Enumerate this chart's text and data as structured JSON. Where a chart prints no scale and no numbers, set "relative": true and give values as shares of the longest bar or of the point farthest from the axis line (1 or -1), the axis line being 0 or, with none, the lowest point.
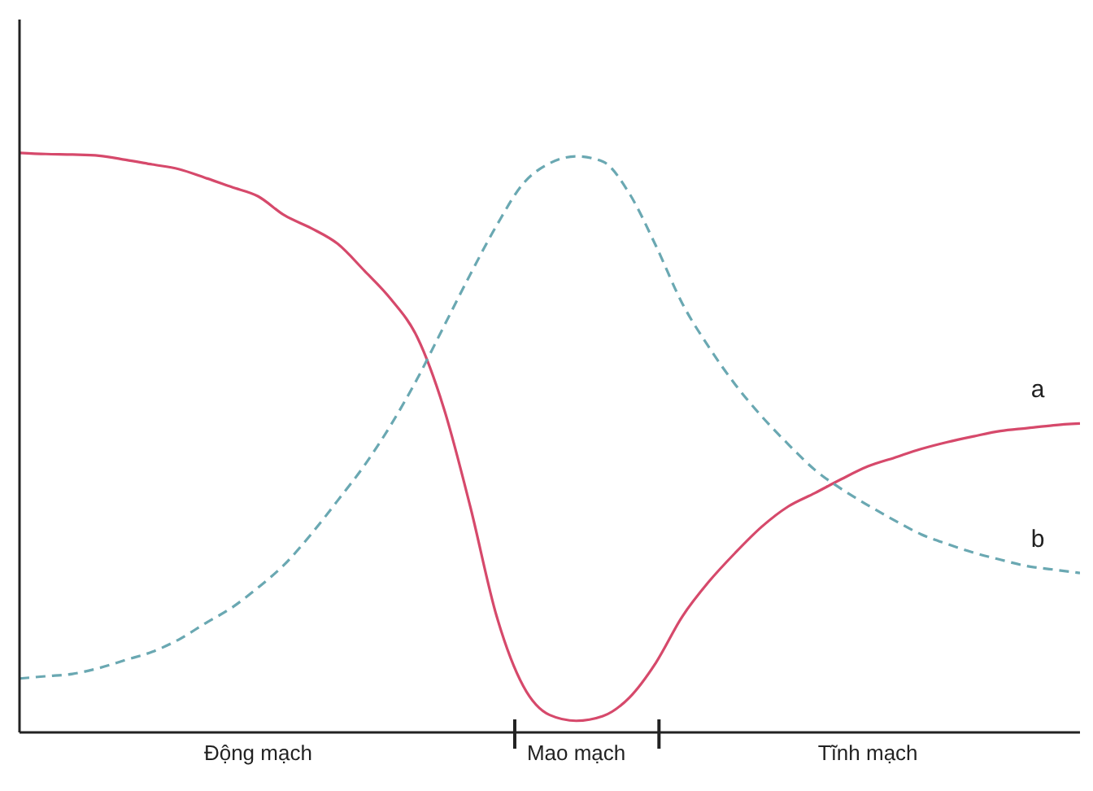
{
  "chart_data": {
    "type": "line",
    "relative": true,
    "legend": false,
    "grid": false,
    "marker": "none",
    "categories": [
      null,
      null,
      null,
      null,
      null,
      null,
      null,
      null,
      null,
      "Động mạch",
      null,
      null,
      null,
      null,
      null,
      null,
      null,
      null,
      null,
      null,
      null,
      "Mao mạch",
      null,
      null,
      null,
      null,
      null,
      null,
      null,
      null,
      null,
      null,
      "Tĩnh mạch",
      null,
      null,
      null,
      null,
      null,
      null,
      null,
      null
    ],
    "series": [
      {
        "name": "a",
        "color": "#d6496b",
        "line_style": "solid",
        "values": [
          1.0,
          0.998,
          0.997,
          0.995,
          0.988,
          0.98,
          0.972,
          0.957,
          0.941,
          0.925,
          0.892,
          0.87,
          0.843,
          0.797,
          0.748,
          0.682,
          0.56,
          0.39,
          0.2,
          0.08,
          0.03,
          0.02,
          0.028,
          0.06,
          0.12,
          0.2,
          0.26,
          0.31,
          0.355,
          0.39,
          0.413,
          0.437,
          0.459,
          0.474,
          0.489,
          0.501,
          0.511,
          0.52,
          0.525,
          0.53,
          0.533
        ]
      },
      {
        "name": "b",
        "color": "#6aa8b2",
        "line_style": "dashed",
        "values": [
          0.093,
          0.097,
          0.101,
          0.111,
          0.125,
          0.139,
          0.16,
          0.188,
          0.215,
          0.25,
          0.29,
          0.342,
          0.4,
          0.46,
          0.53,
          0.61,
          0.7,
          0.79,
          0.875,
          0.947,
          0.982,
          0.994,
          0.985,
          0.93,
          0.84,
          0.74,
          0.665,
          0.6,
          0.545,
          0.497,
          0.453,
          0.42,
          0.392,
          0.366,
          0.342,
          0.325,
          0.31,
          0.298,
          0.287,
          0.281,
          0.275
        ]
      }
    ]
  }
}
